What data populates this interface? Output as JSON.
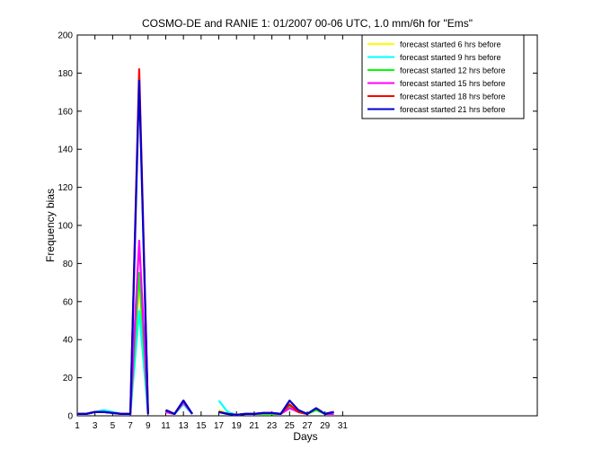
{
  "chart_data": {
    "type": "line",
    "title": "COSMO-DE and RANIE 1: 01/2007 00-06 UTC, 1.0 mm/6h for \"Ems\"",
    "xlabel": "Days",
    "ylabel": "Frequency bias",
    "xlim": [
      1,
      53
    ],
    "ylim": [
      0,
      200
    ],
    "xticks": [
      1,
      3,
      5,
      7,
      9,
      11,
      13,
      15,
      17,
      19,
      21,
      23,
      25,
      27,
      29,
      31
    ],
    "yticks": [
      0,
      20,
      40,
      60,
      80,
      100,
      120,
      140,
      160,
      180,
      200
    ],
    "grid": false,
    "legend_position": "top-right",
    "series": [
      {
        "name": "forecast started 6 hrs before",
        "color": "#ffff00",
        "values": [
          1,
          1,
          2,
          2,
          1.5,
          1,
          1,
          70,
          1,
          null,
          2,
          1,
          7,
          1,
          null,
          null,
          3,
          1,
          0.5,
          1,
          1,
          1,
          1,
          1,
          5,
          2,
          1,
          3,
          1,
          1
        ]
      },
      {
        "name": "forecast started 9 hrs before",
        "color": "#00ffff",
        "values": [
          1,
          1,
          2,
          3,
          2,
          1,
          1,
          55,
          1,
          null,
          2,
          1,
          6,
          1,
          null,
          null,
          8,
          2,
          0.5,
          1,
          1,
          1,
          1,
          1,
          4,
          2,
          1,
          3,
          1,
          1
        ]
      },
      {
        "name": "forecast started 12 hrs before",
        "color": "#00ff00",
        "values": [
          1,
          1,
          2,
          2,
          1.5,
          1,
          1,
          75,
          1,
          null,
          2,
          1,
          7,
          1,
          null,
          null,
          2,
          1,
          0.5,
          1,
          1,
          1,
          1,
          1,
          5,
          2,
          1,
          3,
          1,
          1
        ]
      },
      {
        "name": "forecast started 15 hrs before",
        "color": "#ff00ff",
        "values": [
          1,
          1,
          2,
          2,
          1.5,
          1,
          1,
          92,
          1,
          null,
          2,
          1,
          7,
          1,
          null,
          null,
          2,
          1,
          0.5,
          1,
          1,
          1.5,
          1.5,
          1,
          4,
          2,
          1,
          4,
          1,
          1
        ]
      },
      {
        "name": "forecast started 18 hrs before",
        "color": "#ff0000",
        "values": [
          1,
          1,
          2,
          2,
          1.5,
          1,
          1,
          182,
          1,
          null,
          3,
          1,
          8,
          1,
          null,
          null,
          2,
          1,
          0.5,
          1,
          1,
          1.5,
          1.5,
          1,
          6,
          2,
          1,
          4,
          1,
          2
        ]
      },
      {
        "name": "forecast started 21 hrs before",
        "color": "#0000cc",
        "values": [
          1,
          1,
          2,
          2,
          1.5,
          1,
          1,
          176,
          1,
          null,
          3,
          1,
          8,
          1,
          null,
          null,
          2,
          1,
          0.5,
          1,
          1,
          1.5,
          1.5,
          1,
          8,
          3,
          1,
          4,
          1,
          2
        ]
      }
    ]
  }
}
